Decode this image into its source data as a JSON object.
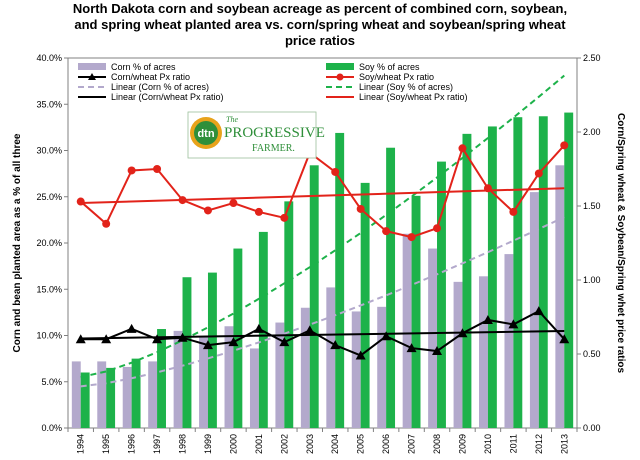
{
  "chart_data": {
    "type": "bar",
    "title_lines": [
      "North Dakota corn and soybean acreage as percent of combined corn, soybean,",
      "and spring wheat planted area vs. corn/spring wheat and soybean/spring wheat",
      "price ratios"
    ],
    "categories": [
      "1994",
      "1995",
      "1996",
      "1997",
      "1998",
      "1999",
      "2000",
      "2001",
      "2002",
      "2003",
      "2004",
      "2005",
      "2006",
      "2007",
      "2008",
      "2009",
      "2010",
      "2011",
      "2012",
      "2013"
    ],
    "ylabel_left": "Corn and bean planted area as a % of all three",
    "ylabel_right": "Corn/Spring wheat & Soybean/Spring whet price ratios",
    "ylim_left": [
      0,
      40
    ],
    "yticks_left": [
      "0.0%",
      "5.0%",
      "10.0%",
      "15.0%",
      "20.0%",
      "25.0%",
      "30.0%",
      "35.0%",
      "40.0%"
    ],
    "ylim_right": [
      0,
      2.5
    ],
    "yticks_right": [
      "0.00",
      "0.50",
      "1.00",
      "1.50",
      "2.00",
      "2.50"
    ],
    "bar_series": [
      {
        "name": "Corn % of acres",
        "axis": "left",
        "color": "#b3a9cc",
        "values": [
          7.2,
          7.2,
          6.6,
          7.2,
          10.5,
          9.9,
          11.0,
          8.6,
          11.4,
          13.0,
          15.2,
          12.6,
          13.1,
          21.0,
          19.4,
          15.8,
          16.4,
          18.8,
          25.5,
          28.4
        ]
      },
      {
        "name": "Soy % of acres",
        "axis": "left",
        "color": "#1db24a",
        "values": [
          6.0,
          6.5,
          7.5,
          10.7,
          16.3,
          16.8,
          19.4,
          21.2,
          24.5,
          28.4,
          31.9,
          26.5,
          30.3,
          25.1,
          28.8,
          31.8,
          32.6,
          33.6,
          33.7,
          34.1
        ]
      }
    ],
    "line_series": [
      {
        "name": "Corn/wheat Px ratio",
        "axis": "right",
        "color": "#000000",
        "marker": "triangle",
        "values": [
          0.6,
          0.6,
          0.67,
          0.6,
          0.61,
          0.56,
          0.58,
          0.67,
          0.58,
          0.66,
          0.56,
          0.49,
          0.62,
          0.54,
          0.52,
          0.64,
          0.73,
          0.7,
          0.79,
          0.6
        ]
      },
      {
        "name": "Soy/wheat Px ratio",
        "axis": "right",
        "color": "#e2231a",
        "marker": "circle",
        "values": [
          1.53,
          1.38,
          1.74,
          1.75,
          1.54,
          1.47,
          1.52,
          1.46,
          1.42,
          1.86,
          1.73,
          1.48,
          1.33,
          1.29,
          1.35,
          1.89,
          1.62,
          1.46,
          1.72,
          1.91
        ]
      }
    ],
    "trend_lines": [
      {
        "name": "Linear (Corn % of acres)",
        "axis": "left",
        "color": "#b3a9cc",
        "dash": true,
        "start": 4.5,
        "end": 22.8
      },
      {
        "name": "Linear (Soy % of acres)",
        "axis": "left",
        "color": "#1db24a",
        "dash": true,
        "start": 5.5,
        "end": 38.1
      },
      {
        "name": "Linear (Corn/wheat Px ratio)",
        "axis": "right",
        "color": "#000000",
        "dash": false,
        "start": 0.605,
        "end": 0.655
      },
      {
        "name": "Linear (Soy/wheat Px ratio)",
        "axis": "right",
        "color": "#e2231a",
        "dash": false,
        "start": 1.52,
        "end": 1.62
      }
    ],
    "legend_position": "top-left inside plot",
    "grid": false
  },
  "logo": {
    "badge": "dtn",
    "line1": "The",
    "line2": "PROGRESSIVE",
    "line3": "FARMER."
  }
}
